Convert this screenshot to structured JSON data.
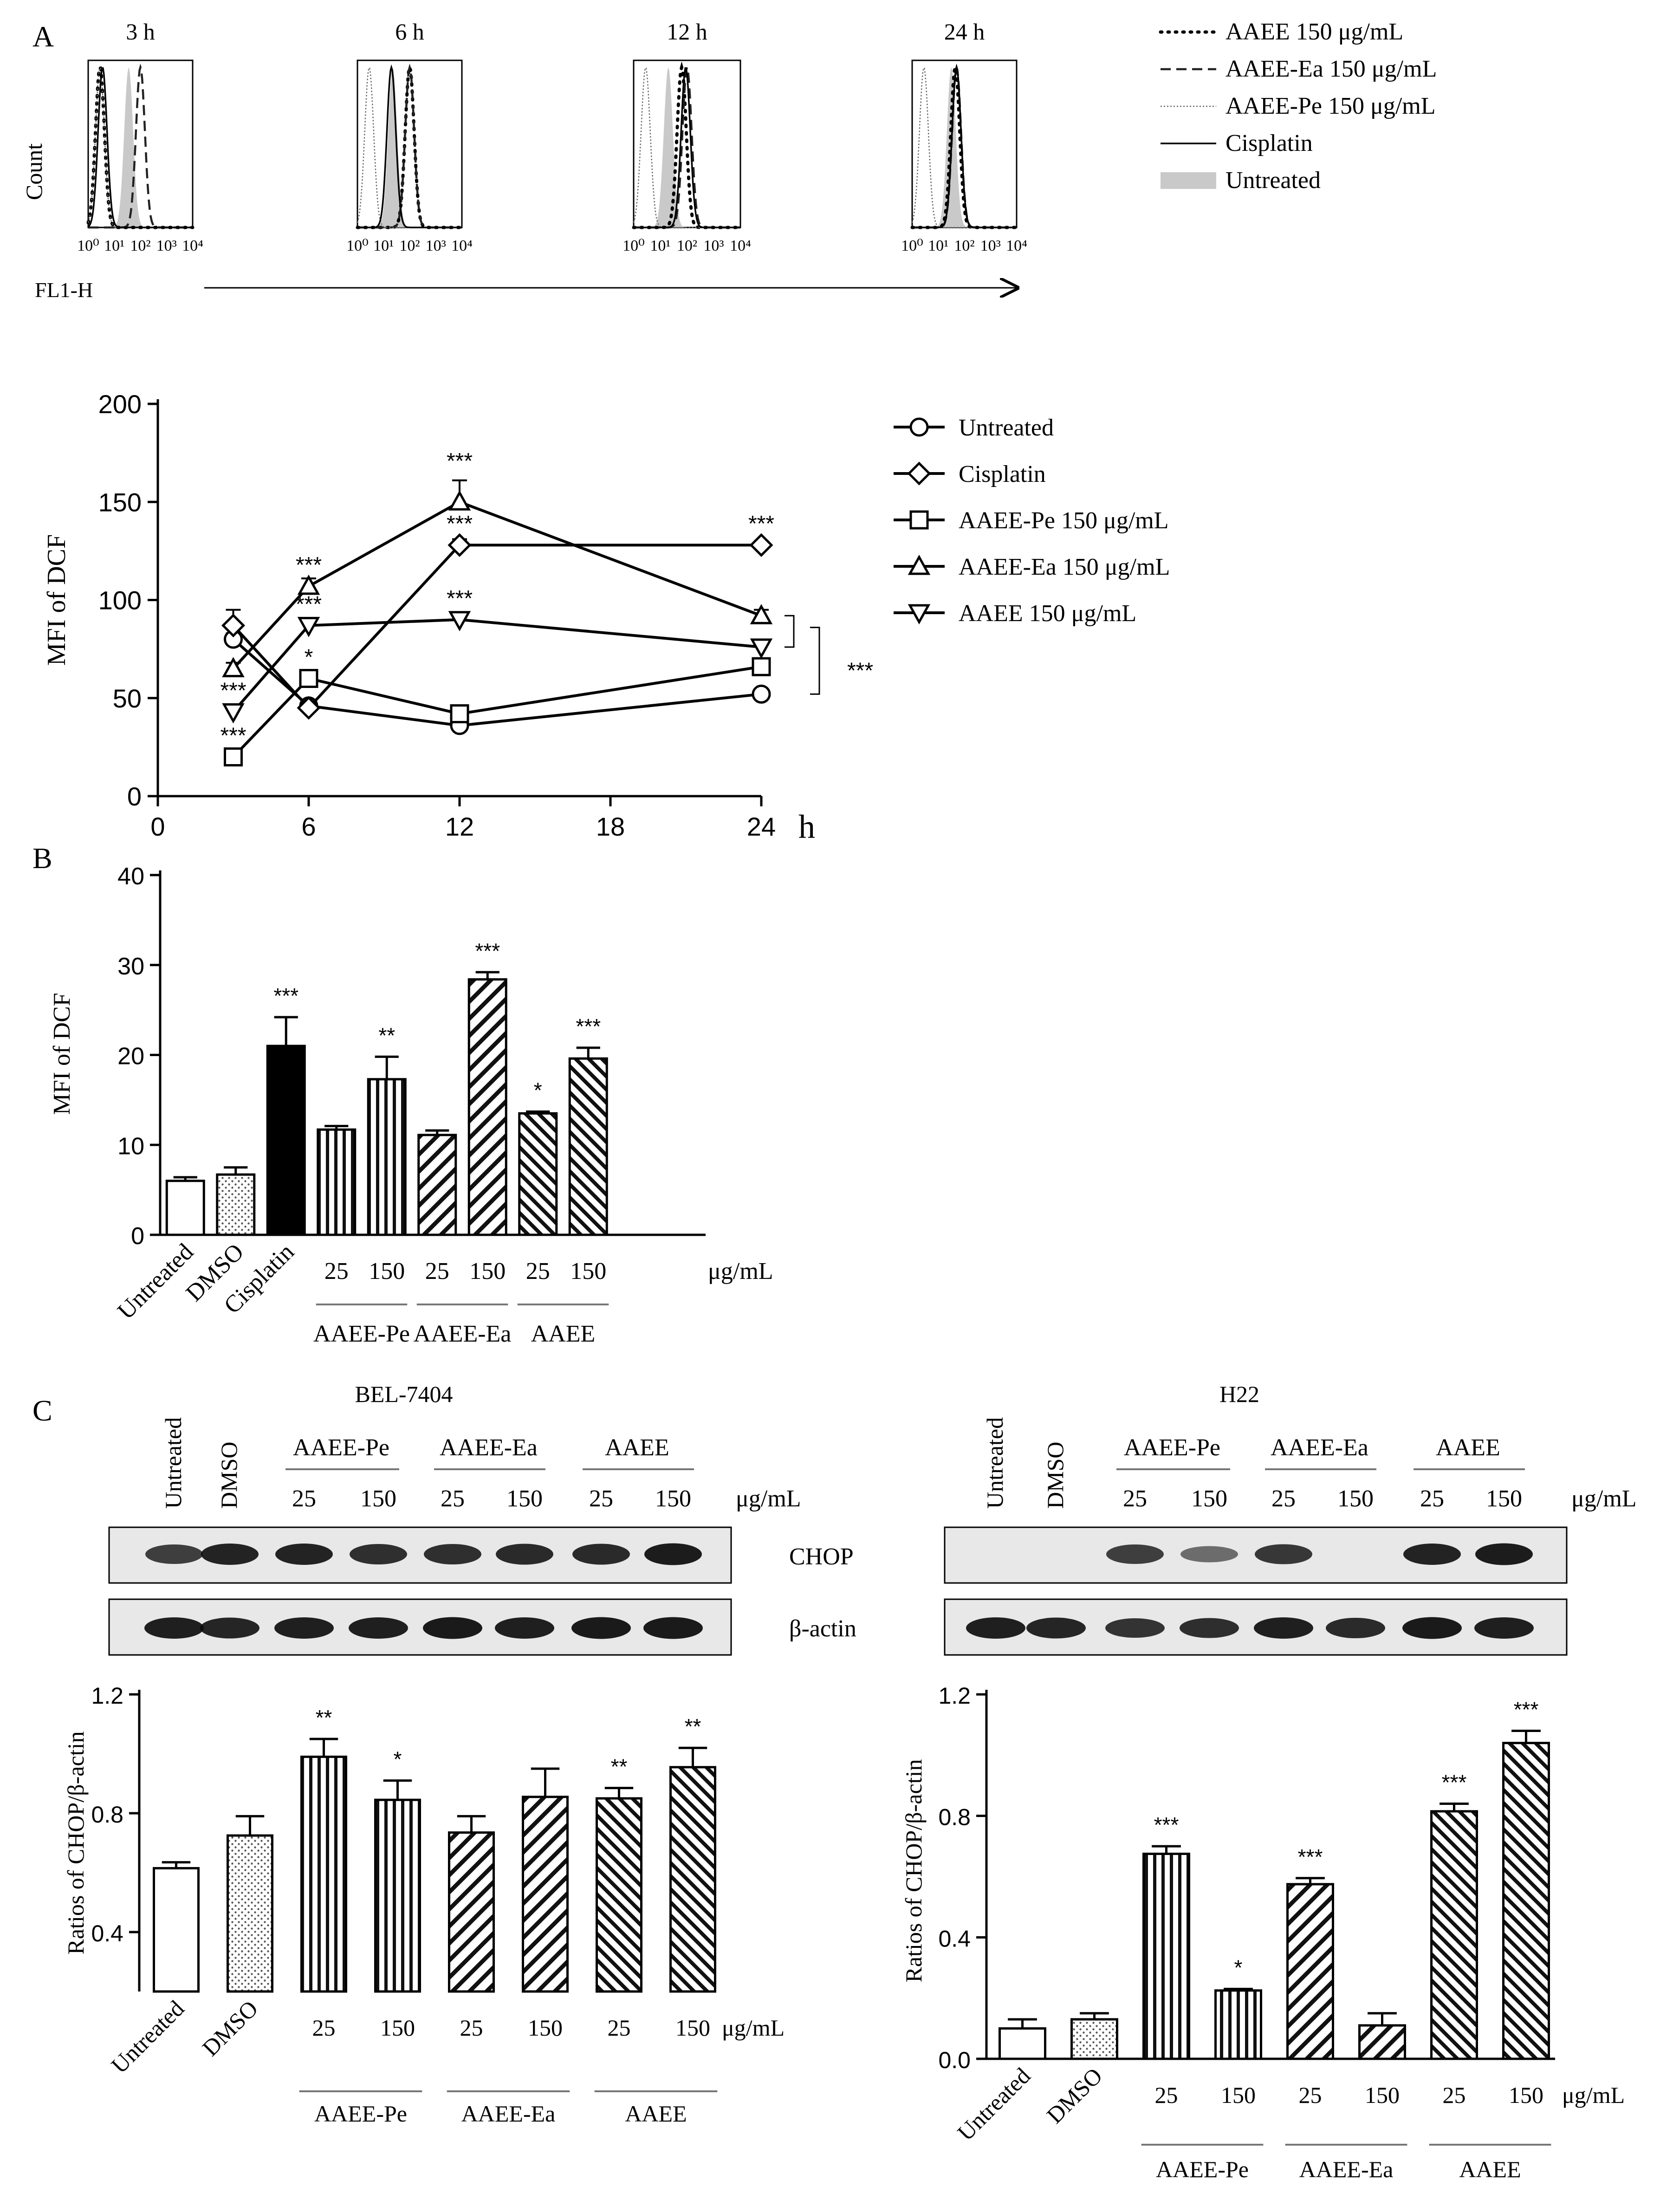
{
  "panel_letters": {
    "a": "A",
    "b": "B",
    "c": "C"
  },
  "chart_data": [
    {
      "id": "A-histograms",
      "type": "histogram-overlay",
      "timepoints": [
        "3 h",
        "6 h",
        "12 h",
        "24 h"
      ],
      "ylabel": "Count",
      "xlabel": "FL1-H",
      "x_ticks": [
        "10⁰",
        "10¹",
        "10²",
        "10³",
        "10⁴"
      ],
      "series": [
        {
          "name": "AAEE 150 μg/mL",
          "style": "dotted-bold",
          "peaks_log10": [
            0.45,
            2.0,
            1.8,
            1.65
          ]
        },
        {
          "name": "AAEE-Ea 150 μg/mL",
          "style": "dashed",
          "peaks_log10": [
            2.0,
            2.0,
            2.0,
            1.7
          ]
        },
        {
          "name": "AAEE-Pe 150 μg/mL",
          "style": "thin-dotted",
          "peaks_log10": [
            0.45,
            0.45,
            0.45,
            0.45
          ]
        },
        {
          "name": "Cisplatin",
          "style": "solid",
          "peaks_log10": [
            0.55,
            1.3,
            1.95,
            1.7
          ]
        },
        {
          "name": "Untreated",
          "style": "gray-fill",
          "peaks_log10": [
            1.55,
            1.35,
            1.3,
            1.5
          ]
        }
      ]
    },
    {
      "id": "A-time",
      "type": "line",
      "ylabel": "MFI of DCF",
      "xlabel": "h",
      "xlim": [
        0,
        24
      ],
      "ylim": [
        0,
        200
      ],
      "xticks": [
        0,
        6,
        12,
        18,
        24
      ],
      "yticks": [
        0,
        50,
        100,
        150,
        200
      ],
      "x": [
        3,
        6,
        12,
        24
      ],
      "series": [
        {
          "name": "Untreated",
          "marker": "circle",
          "values": [
            80,
            46,
            36,
            52
          ],
          "err": [
            3,
            2,
            2,
            2
          ]
        },
        {
          "name": "Cisplatin",
          "marker": "diamond",
          "values": [
            87,
            45,
            128,
            128
          ],
          "err": [
            8,
            2,
            3,
            2
          ]
        },
        {
          "name": "AAEE-Pe 150 μg/mL",
          "marker": "square",
          "values": [
            20,
            60,
            42,
            66
          ],
          "err": [
            2,
            3,
            2,
            3
          ]
        },
        {
          "name": "AAEE-Ea 150 μg/mL",
          "marker": "triangle-up",
          "values": [
            65,
            107,
            150,
            92
          ],
          "err": [
            3,
            4,
            11,
            3
          ]
        },
        {
          "name": "AAEE 150 μg/mL",
          "marker": "triangle-down",
          "values": [
            43,
            87,
            90,
            76
          ],
          "err": [
            3,
            3,
            3,
            3
          ]
        }
      ],
      "annotations": [
        {
          "x": 3,
          "y": 20,
          "text": "***"
        },
        {
          "x": 3,
          "y": 43,
          "text": "***"
        },
        {
          "x": 6,
          "y": 60,
          "text": "*"
        },
        {
          "x": 6,
          "y": 87,
          "text": "***"
        },
        {
          "x": 6,
          "y": 107,
          "text": "***"
        },
        {
          "x": 12,
          "y": 90,
          "text": "***"
        },
        {
          "x": 12,
          "y": 128,
          "text": "***"
        },
        {
          "x": 12,
          "y": 160,
          "text": "***"
        },
        {
          "x": 24,
          "y": 128,
          "text": "***"
        }
      ],
      "bracket_label": "***"
    },
    {
      "id": "B",
      "type": "bar",
      "ylabel": "MFI of DCF",
      "ylim": [
        0,
        40
      ],
      "yticks": [
        0,
        10,
        20,
        30,
        40
      ],
      "bars": [
        {
          "label": "Untreated",
          "value": 6.0,
          "err": 0.4,
          "fill": "white",
          "sig": ""
        },
        {
          "label": "DMSO",
          "value": 6.7,
          "err": 0.8,
          "fill": "dots",
          "sig": ""
        },
        {
          "label": "Cisplatin",
          "value": 21.0,
          "err": 3.2,
          "fill": "black",
          "sig": "***"
        },
        {
          "label": "25",
          "value": 11.7,
          "err": 0.4,
          "fill": "vlines",
          "sig": ""
        },
        {
          "label": "150",
          "value": 17.3,
          "err": 2.5,
          "fill": "vlines",
          "sig": "**"
        },
        {
          "label": "25",
          "value": 11.1,
          "err": 0.5,
          "fill": "diag",
          "sig": ""
        },
        {
          "label": "150",
          "value": 28.4,
          "err": 0.8,
          "fill": "diag",
          "sig": "***"
        },
        {
          "label": "25",
          "value": 13.5,
          "err": 0.2,
          "fill": "diag-dense",
          "sig": "*"
        },
        {
          "label": "150",
          "value": 19.6,
          "err": 1.2,
          "fill": "diag-dense",
          "sig": "***"
        }
      ],
      "unit": "μg/mL",
      "groups": [
        "AAEE-Pe",
        "AAEE-Ea",
        "AAEE"
      ]
    },
    {
      "id": "C-BEL",
      "type": "bar",
      "title": "BEL-7404",
      "ylabel": "Ratios of CHOP/β-actin",
      "ylim": [
        0.2,
        1.2
      ],
      "yticks": [
        0.4,
        0.8,
        1.2
      ],
      "bars": [
        {
          "label": "Untreated",
          "value": 0.615,
          "err": 0.02,
          "fill": "white",
          "sig": ""
        },
        {
          "label": "DMSO",
          "value": 0.725,
          "err": 0.065,
          "fill": "dots",
          "sig": ""
        },
        {
          "label": "25",
          "value": 0.99,
          "err": 0.06,
          "fill": "vlines",
          "sig": "**"
        },
        {
          "label": "150",
          "value": 0.845,
          "err": 0.065,
          "fill": "vlines",
          "sig": "*"
        },
        {
          "label": "25",
          "value": 0.735,
          "err": 0.055,
          "fill": "diag",
          "sig": ""
        },
        {
          "label": "150",
          "value": 0.855,
          "err": 0.095,
          "fill": "diag",
          "sig": ""
        },
        {
          "label": "25",
          "value": 0.85,
          "err": 0.035,
          "fill": "diag-dense",
          "sig": "**"
        },
        {
          "label": "150",
          "value": 0.955,
          "err": 0.065,
          "fill": "diag-dense",
          "sig": "**"
        }
      ],
      "unit": "μg/mL",
      "groups": [
        "AAEE-Pe",
        "AAEE-Ea",
        "AAEE"
      ]
    },
    {
      "id": "C-H22",
      "type": "bar",
      "title": "H22",
      "ylabel": "Ratios of CHOP/β-actin",
      "ylim": [
        0,
        1.2
      ],
      "yticks": [
        0.0,
        0.4,
        0.8,
        1.2
      ],
      "bars": [
        {
          "label": "Untreated",
          "value": 0.1,
          "err": 0.03,
          "fill": "white",
          "sig": ""
        },
        {
          "label": "DMSO",
          "value": 0.13,
          "err": 0.02,
          "fill": "dots",
          "sig": ""
        },
        {
          "label": "25",
          "value": 0.675,
          "err": 0.025,
          "fill": "vlines",
          "sig": "***"
        },
        {
          "label": "150",
          "value": 0.225,
          "err": 0.005,
          "fill": "vlines",
          "sig": "*"
        },
        {
          "label": "25",
          "value": 0.575,
          "err": 0.02,
          "fill": "diag",
          "sig": "***"
        },
        {
          "label": "150",
          "value": 0.11,
          "err": 0.04,
          "fill": "diag",
          "sig": ""
        },
        {
          "label": "25",
          "value": 0.815,
          "err": 0.025,
          "fill": "diag-dense",
          "sig": "***"
        },
        {
          "label": "150",
          "value": 1.04,
          "err": 0.04,
          "fill": "diag-dense",
          "sig": "***"
        }
      ],
      "unit": "μg/mL",
      "groups": [
        "AAEE-Pe",
        "AAEE-Ea",
        "AAEE"
      ]
    }
  ],
  "blots": {
    "unit": "μg/mL",
    "lane_groups": [
      "AAEE-Pe",
      "AAEE-Ea",
      "AAEE"
    ],
    "doses": [
      "25",
      "150"
    ],
    "controls": [
      "Untreated",
      "DMSO"
    ],
    "rows": [
      "CHOP",
      "β-actin"
    ],
    "bel_title": "BEL-7404",
    "h22_title": "H22"
  }
}
